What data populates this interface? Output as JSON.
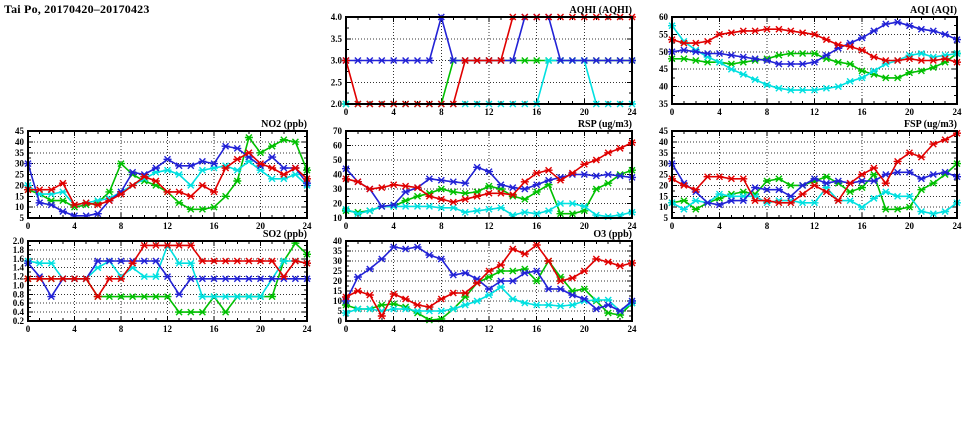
{
  "title": "Tai Po, 20170420–20170423",
  "chart_data": [
    {
      "id": "aqhi",
      "type": "line",
      "title": "AQHI (AQHI)",
      "xlim": [
        0,
        24
      ],
      "ylim": [
        2.0,
        4.0
      ],
      "xticks": [
        0,
        4,
        8,
        12,
        16,
        20,
        24
      ],
      "xtick_labels": [
        "0",
        "4",
        "8",
        "12",
        "16",
        "20",
        "24"
      ],
      "yticks": [
        2.0,
        2.5,
        3.0,
        3.5,
        4.0
      ],
      "ytick_labels": [
        "2.0",
        "2.5",
        "3.0",
        "3.5",
        "4.0"
      ],
      "grid": true,
      "legend": "none",
      "marker": "asterisk",
      "series": [
        {
          "name": "green",
          "color": "#00c000",
          "values": [
            2,
            2,
            2,
            2,
            2,
            2,
            2,
            2,
            2,
            3,
            3,
            3,
            3,
            3,
            3,
            3,
            3,
            3,
            3,
            3,
            3,
            3,
            3,
            3,
            3
          ]
        },
        {
          "name": "cyan",
          "color": "#00e0e0",
          "values": [
            2,
            2,
            2,
            2,
            2,
            2,
            2,
            2,
            2,
            2,
            2,
            2,
            2,
            2,
            2,
            2,
            2,
            3,
            3,
            3,
            3,
            2,
            2,
            2,
            2
          ]
        },
        {
          "name": "blue",
          "color": "#2222d6",
          "values": [
            3,
            3,
            3,
            3,
            3,
            3,
            3,
            3,
            4,
            3,
            3,
            3,
            3,
            3,
            3,
            4,
            4,
            4,
            3,
            3,
            3,
            3,
            3,
            3,
            3
          ]
        },
        {
          "name": "red",
          "color": "#e00000",
          "values": [
            3,
            2,
            2,
            2,
            2,
            2,
            2,
            2,
            2,
            2,
            3,
            3,
            3,
            3,
            4,
            4,
            4,
            4,
            4,
            4,
            4,
            4,
            4,
            4,
            4
          ]
        }
      ]
    },
    {
      "id": "aqi",
      "type": "line",
      "title": "AQI (AQI)",
      "xlim": [
        0,
        24
      ],
      "ylim": [
        35,
        60
      ],
      "xticks": [
        0,
        4,
        8,
        12,
        16,
        20,
        24
      ],
      "xtick_labels": [
        "0",
        "4",
        "8",
        "12",
        "16",
        "20",
        "24"
      ],
      "yticks": [
        35,
        40,
        45,
        50,
        55,
        60
      ],
      "ytick_labels": [
        "35",
        "40",
        "45",
        "50",
        "55",
        "60"
      ],
      "grid": true,
      "legend": "none",
      "marker": "asterisk",
      "series": [
        {
          "name": "green",
          "color": "#00c000",
          "values": [
            48,
            48,
            47.5,
            47,
            47,
            46.5,
            47,
            47.5,
            48,
            49,
            49.5,
            49.5,
            49.5,
            48,
            47,
            46.5,
            44.5,
            43.5,
            42.5,
            42.5,
            44,
            44.5,
            45.5,
            47,
            49.5
          ]
        },
        {
          "name": "cyan",
          "color": "#00e0e0",
          "values": [
            57.5,
            53,
            50.5,
            48.5,
            47,
            45,
            43.5,
            42,
            40.5,
            39.5,
            39,
            39,
            39,
            39.5,
            40,
            41.5,
            42.5,
            44.5,
            46.5,
            47.5,
            49,
            49.5,
            48.5,
            49,
            49.5
          ]
        },
        {
          "name": "blue",
          "color": "#2222d6",
          "values": [
            50,
            50.5,
            50,
            49.5,
            49.5,
            49,
            48.5,
            48,
            47.5,
            46.5,
            46.5,
            46.5,
            47,
            49,
            51,
            52.5,
            54,
            56,
            58,
            58.5,
            57.5,
            56.5,
            56,
            55,
            53.5
          ]
        },
        {
          "name": "red",
          "color": "#e00000",
          "values": [
            53.5,
            52.5,
            52.5,
            53,
            55,
            55.5,
            56,
            56,
            56.5,
            56.5,
            56,
            55.5,
            55,
            53.5,
            52,
            51.5,
            50.5,
            48.5,
            47.5,
            47.5,
            48,
            47.5,
            47.5,
            48,
            47
          ]
        }
      ]
    },
    {
      "id": "no2",
      "type": "line",
      "title": "NO2 (ppb)",
      "xlim": [
        0,
        24
      ],
      "ylim": [
        5,
        45
      ],
      "xticks": [
        0,
        4,
        8,
        12,
        16,
        20,
        24
      ],
      "xtick_labels": [
        "0",
        "4",
        "8",
        "12",
        "16",
        "20",
        "24"
      ],
      "yticks": [
        5,
        10,
        15,
        20,
        25,
        30,
        35,
        40,
        45
      ],
      "ytick_labels": [
        "5",
        "10",
        "15",
        "20",
        "25",
        "30",
        "35",
        "40",
        "45"
      ],
      "grid": true,
      "legend": "none",
      "marker": "asterisk",
      "series": [
        {
          "name": "green",
          "color": "#00c000",
          "values": [
            18,
            16,
            13,
            13,
            10,
            11,
            12,
            17,
            30,
            25,
            22,
            20,
            17,
            12,
            9,
            9,
            10,
            15,
            22,
            42,
            35,
            38,
            41,
            40,
            27
          ]
        },
        {
          "name": "cyan",
          "color": "#00e0e0",
          "values": [
            20,
            16,
            16,
            17,
            11,
            12,
            13,
            14,
            17,
            20,
            23,
            26,
            27,
            25,
            20,
            27,
            28,
            29,
            27,
            31,
            27,
            23,
            23,
            25,
            20
          ]
        },
        {
          "name": "blue",
          "color": "#2222d6",
          "values": [
            30,
            12,
            11,
            8,
            6,
            6,
            7,
            13,
            17,
            26,
            25,
            28,
            32,
            29,
            29,
            31,
            30,
            38,
            37,
            33,
            29,
            33,
            28,
            28,
            21
          ]
        },
        {
          "name": "red",
          "color": "#e00000",
          "values": [
            18,
            18,
            18,
            21,
            11,
            12,
            11,
            13,
            16,
            20,
            24,
            22,
            17,
            17,
            15,
            20,
            17,
            28,
            32,
            35,
            30,
            28,
            25,
            28,
            23
          ]
        }
      ]
    },
    {
      "id": "rsp",
      "type": "line",
      "title": "RSP (ug/m3)",
      "xlim": [
        0,
        24
      ],
      "ylim": [
        10,
        70
      ],
      "xticks": [
        0,
        4,
        8,
        12,
        16,
        20,
        24
      ],
      "xtick_labels": [
        "0",
        "4",
        "8",
        "12",
        "16",
        "20",
        "24"
      ],
      "yticks": [
        10,
        20,
        30,
        40,
        50,
        60,
        70
      ],
      "ytick_labels": [
        "10",
        "20",
        "30",
        "40",
        "50",
        "60",
        "70"
      ],
      "grid": true,
      "legend": "none",
      "marker": "asterisk",
      "series": [
        {
          "name": "green",
          "color": "#00c000",
          "values": [
            15,
            14,
            15,
            18,
            18,
            22,
            25,
            27,
            30,
            28,
            27,
            28,
            32,
            30,
            25,
            23,
            28,
            33,
            13,
            13,
            15,
            30,
            34,
            40,
            43
          ]
        },
        {
          "name": "cyan",
          "color": "#00e0e0",
          "values": [
            16,
            13,
            15,
            18,
            18,
            18,
            18,
            18,
            17,
            17,
            14,
            15,
            16,
            17,
            12,
            14,
            13,
            15,
            20,
            20,
            18,
            12,
            11,
            12,
            14
          ]
        },
        {
          "name": "blue",
          "color": "#2222d6",
          "values": [
            44,
            35,
            30,
            18,
            19,
            28,
            31,
            37,
            36,
            35,
            34,
            45,
            42,
            33,
            31,
            30,
            33,
            36,
            38,
            40,
            40,
            39,
            40,
            39,
            38
          ]
        },
        {
          "name": "red",
          "color": "#e00000",
          "values": [
            37,
            35,
            30,
            31,
            33,
            32,
            31,
            25,
            23,
            21,
            23,
            25,
            27,
            27,
            26,
            35,
            41,
            43,
            36,
            41,
            47,
            50,
            55,
            58,
            62
          ]
        }
      ]
    },
    {
      "id": "fsp",
      "type": "line",
      "title": "FSP (ug/m3)",
      "xlim": [
        0,
        24
      ],
      "ylim": [
        5,
        45
      ],
      "xticks": [
        0,
        4,
        8,
        12,
        16,
        20,
        24
      ],
      "xtick_labels": [
        "0",
        "4",
        "8",
        "12",
        "16",
        "20",
        "24"
      ],
      "yticks": [
        5,
        10,
        15,
        20,
        25,
        30,
        35,
        40,
        45
      ],
      "ytick_labels": [
        "5",
        "10",
        "15",
        "20",
        "25",
        "30",
        "35",
        "40",
        "45"
      ],
      "grid": true,
      "legend": "none",
      "marker": "asterisk",
      "series": [
        {
          "name": "green",
          "color": "#00c000",
          "values": [
            12,
            13,
            9,
            12,
            14,
            16,
            17,
            16,
            22,
            23,
            20,
            20,
            22,
            24,
            21,
            17,
            19,
            25,
            9,
            9,
            10,
            18,
            21,
            25,
            30
          ]
        },
        {
          "name": "cyan",
          "color": "#00e0e0",
          "values": [
            12,
            9,
            13,
            12,
            16,
            15,
            15,
            15,
            12,
            13,
            13,
            12,
            12,
            19,
            13,
            13,
            10,
            14,
            17,
            15,
            15,
            8,
            7,
            8,
            12
          ]
        },
        {
          "name": "blue",
          "color": "#2222d6",
          "values": [
            30,
            21,
            17,
            12,
            11,
            13,
            13,
            19,
            18,
            18,
            15,
            20,
            23,
            21,
            22,
            21,
            22,
            22,
            25,
            26,
            26,
            23,
            25,
            26,
            24
          ]
        },
        {
          "name": "red",
          "color": "#e00000",
          "values": [
            23,
            20,
            18,
            24,
            24,
            23,
            23,
            13,
            13,
            12,
            12,
            16,
            20,
            17,
            13,
            21,
            25,
            28,
            21,
            31,
            35,
            33,
            39,
            41,
            44
          ]
        }
      ]
    },
    {
      "id": "so2",
      "type": "line",
      "title": "SO2 (ppb)",
      "xlim": [
        0,
        24
      ],
      "ylim": [
        0.2,
        2.0
      ],
      "xticks": [
        0,
        4,
        8,
        12,
        16,
        20,
        24
      ],
      "xtick_labels": [
        "0",
        "4",
        "8",
        "12",
        "16",
        "20",
        "24"
      ],
      "yticks": [
        0.2,
        0.4,
        0.6,
        0.8,
        1.0,
        1.2,
        1.4,
        1.6,
        1.8,
        2.0
      ],
      "ytick_labels": [
        "0.2",
        "0.4",
        "0.6",
        "0.8",
        "1.0",
        "1.2",
        "1.4",
        "1.6",
        "1.8",
        "2.0"
      ],
      "grid": true,
      "legend": "none",
      "marker": "asterisk",
      "series": [
        {
          "name": "green",
          "color": "#00c000",
          "values": [
            1.15,
            1.15,
            1.15,
            1.15,
            1.15,
            1.15,
            0.75,
            0.75,
            0.75,
            0.75,
            0.75,
            0.75,
            0.75,
            0.4,
            0.4,
            0.4,
            0.75,
            0.4,
            0.75,
            0.75,
            0.75,
            0.75,
            1.55,
            1.95,
            1.7
          ]
        },
        {
          "name": "cyan",
          "color": "#00e0e0",
          "values": [
            1.55,
            1.5,
            1.5,
            1.15,
            1.15,
            1.15,
            1.4,
            1.55,
            1.2,
            1.4,
            1.2,
            1.2,
            1.9,
            1.5,
            1.5,
            0.75,
            0.75,
            0.75,
            0.75,
            0.75,
            0.75,
            1.15,
            1.55,
            1.55,
            1.5
          ]
        },
        {
          "name": "blue",
          "color": "#2222d6",
          "values": [
            1.5,
            1.2,
            0.75,
            1.15,
            1.15,
            1.15,
            1.55,
            1.55,
            1.55,
            1.55,
            1.55,
            1.55,
            1.2,
            0.8,
            1.15,
            1.15,
            1.15,
            1.15,
            1.15,
            1.15,
            1.15,
            1.15,
            1.15,
            1.15,
            1.15
          ]
        },
        {
          "name": "red",
          "color": "#e00000",
          "values": [
            1.15,
            1.15,
            1.15,
            1.15,
            1.15,
            1.15,
            0.75,
            1.15,
            1.15,
            1.5,
            1.9,
            1.9,
            1.9,
            1.9,
            1.9,
            1.55,
            1.55,
            1.55,
            1.55,
            1.55,
            1.55,
            1.55,
            1.2,
            1.55,
            1.5
          ]
        }
      ]
    },
    {
      "id": "o3",
      "type": "line",
      "title": "O3 (ppb)",
      "xlim": [
        0,
        24
      ],
      "ylim": [
        0,
        40
      ],
      "xticks": [
        0,
        4,
        8,
        12,
        16,
        20,
        24
      ],
      "xtick_labels": [
        "0",
        "4",
        "8",
        "12",
        "16",
        "20",
        "24"
      ],
      "yticks": [
        0,
        5,
        10,
        15,
        20,
        25,
        30,
        35,
        40
      ],
      "ytick_labels": [
        "0",
        "5",
        "10",
        "15",
        "20",
        "25",
        "30",
        "35",
        "40"
      ],
      "grid": true,
      "legend": "none",
      "marker": "asterisk",
      "series": [
        {
          "name": "green",
          "color": "#00c000",
          "values": [
            8,
            6,
            6,
            8,
            8.5,
            7,
            4,
            0.5,
            1,
            6,
            12,
            19,
            22,
            25,
            25,
            26,
            20,
            30,
            22,
            15,
            16,
            10,
            4,
            3,
            9
          ]
        },
        {
          "name": "cyan",
          "color": "#00e0e0",
          "values": [
            4,
            6,
            6,
            5,
            6,
            6,
            5,
            5,
            5,
            6,
            8,
            10,
            13,
            17,
            11,
            9,
            8,
            8,
            7.5,
            8,
            10,
            10.5,
            10.5,
            5,
            9
          ]
        },
        {
          "name": "blue",
          "color": "#2222d6",
          "values": [
            10,
            22,
            26,
            31,
            37,
            36,
            37,
            33,
            31,
            23,
            24,
            21,
            16,
            20,
            20,
            24,
            25,
            16,
            16,
            13,
            11,
            6,
            8,
            5,
            10
          ]
        },
        {
          "name": "red",
          "color": "#e00000",
          "values": [
            12,
            15,
            13,
            2.5,
            13.5,
            11,
            8,
            7,
            11,
            14,
            14,
            19,
            25,
            28,
            36,
            33.5,
            38,
            30,
            20,
            21.5,
            25,
            31,
            29.5,
            27.5,
            29
          ]
        }
      ]
    }
  ]
}
